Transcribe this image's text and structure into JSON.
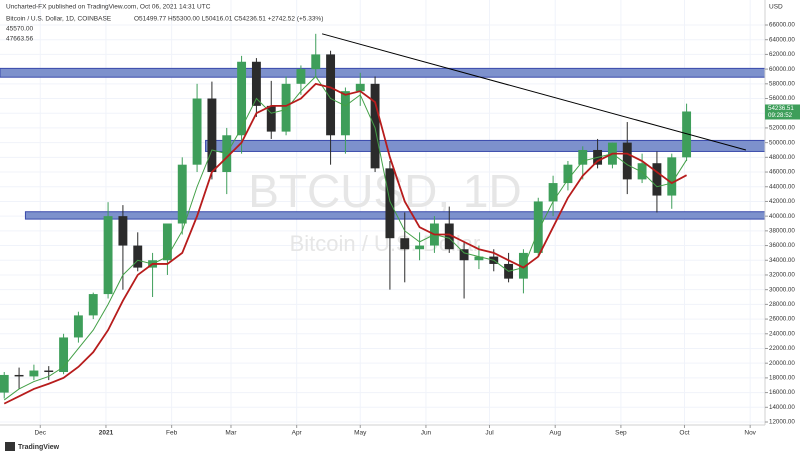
{
  "chart_data": {
    "type": "candlestick",
    "publisher": "Uncharted-FX published on TradingView.com, Oct 06, 2021 14:31 UTC",
    "title": "Bitcoin / U.S. Dollar, 1D, COINBASE",
    "ohlc_line": "O51499.77 H55300.00 L50416.01 C54236.51 +2742.52 (+5.33%)",
    "watermark": "BTCUSD, 1D",
    "watermark_sub": "Bitcoin / U.S. Dollar",
    "currency": "USD",
    "countdown": "09:28:52",
    "brand": "TradingView",
    "up_color": "#3e9e5a",
    "down_color": "#2b2b2b",
    "grid": true,
    "xlim": [
      -2,
      359
    ],
    "ylim": [
      12000,
      66000
    ],
    "xticks": [
      {
        "value": 17,
        "label": "Dec"
      },
      {
        "value": 48,
        "label": "2021"
      },
      {
        "value": 79,
        "label": "Feb"
      },
      {
        "value": 107,
        "label": "Mar"
      },
      {
        "value": 138,
        "label": "Apr"
      },
      {
        "value": 168,
        "label": "May"
      },
      {
        "value": 199,
        "label": "Jun"
      },
      {
        "value": 229,
        "label": "Jul"
      },
      {
        "value": 260,
        "label": "Aug"
      },
      {
        "value": 291,
        "label": "Sep"
      },
      {
        "value": 321,
        "label": "Oct"
      },
      {
        "value": 352,
        "label": "Nov"
      }
    ],
    "yticks": [
      {
        "value": 12000,
        "label": "12000.00"
      },
      {
        "value": 14000,
        "label": "14000.00"
      },
      {
        "value": 16000,
        "label": "16000.00"
      },
      {
        "value": 18000,
        "label": "18000.00"
      },
      {
        "value": 20000,
        "label": "20000.00"
      },
      {
        "value": 22000,
        "label": "22000.00"
      },
      {
        "value": 24000,
        "label": "24000.00"
      },
      {
        "value": 26000,
        "label": "26000.00"
      },
      {
        "value": 28000,
        "label": "28000.00"
      },
      {
        "value": 30000,
        "label": "30000.00"
      },
      {
        "value": 32000,
        "label": "32000.00"
      },
      {
        "value": 34000,
        "label": "34000.00"
      },
      {
        "value": 36000,
        "label": "36000.00"
      },
      {
        "value": 38000,
        "label": "38000.00"
      },
      {
        "value": 40000,
        "label": "40000.00"
      },
      {
        "value": 42000,
        "label": "42000.00"
      },
      {
        "value": 44000,
        "label": "44000.00"
      },
      {
        "value": 46000,
        "label": "46000.00"
      },
      {
        "value": 48000,
        "label": "48000.00"
      },
      {
        "value": 50000,
        "label": "50000.00"
      },
      {
        "value": 52000,
        "label": "52000.00"
      },
      {
        "value": 54000,
        "label": "54000.00"
      },
      {
        "value": 56000,
        "label": "56000.00"
      },
      {
        "value": 58000,
        "label": "58000.00"
      },
      {
        "value": 60000,
        "label": "60000.00"
      },
      {
        "value": 62000,
        "label": "62000.00"
      },
      {
        "value": 64000,
        "label": "64000.00"
      },
      {
        "value": 66000,
        "label": "66000.00"
      }
    ],
    "x": [
      0,
      7,
      14,
      21,
      28,
      35,
      42,
      49,
      56,
      63,
      70,
      77,
      84,
      91,
      98,
      105,
      112,
      119,
      126,
      133,
      140,
      147,
      154,
      161,
      168,
      175,
      182,
      189,
      196,
      203,
      210,
      217,
      224,
      231,
      238,
      245,
      252,
      259,
      266,
      273,
      280,
      287,
      294,
      301,
      308,
      315,
      322
    ],
    "open": [
      16000,
      18400,
      18200,
      19000,
      18800,
      23500,
      26500,
      29400,
      40000,
      36000,
      33000,
      34000,
      39000,
      47000,
      56000,
      46000,
      51000,
      61000,
      55000,
      51500,
      58000,
      60000,
      62000,
      51000,
      57000,
      58000,
      46500,
      37000,
      35500,
      36000,
      39000,
      35500,
      34000,
      34500,
      33500,
      31500,
      35000,
      42000,
      44500,
      47000,
      49000,
      47000,
      50000,
      45000,
      47200,
      42800,
      48000
    ],
    "high": [
      18800,
      19400,
      19800,
      19600,
      24000,
      27000,
      29600,
      41900,
      41500,
      37800,
      35000,
      38500,
      48000,
      58000,
      58300,
      52000,
      61800,
      61500,
      58400,
      59000,
      60500,
      64800,
      62500,
      57500,
      59500,
      59000,
      47500,
      40500,
      37800,
      40000,
      41300,
      36500,
      36000,
      35500,
      35000,
      35500,
      42500,
      45500,
      47500,
      49500,
      50500,
      50000,
      52800,
      48500,
      48800,
      48500,
      55300
    ],
    "low": [
      15200,
      16500,
      17700,
      17700,
      18500,
      22800,
      26000,
      28800,
      30000,
      32500,
      29000,
      32000,
      37500,
      46000,
      45000,
      43000,
      48500,
      53500,
      50500,
      51000,
      56500,
      59000,
      47000,
      48500,
      55000,
      46000,
      30000,
      31000,
      34000,
      35000,
      35000,
      28800,
      32800,
      32500,
      31000,
      29500,
      34500,
      40000,
      43500,
      45000,
      46500,
      46500,
      43000,
      44500,
      40500,
      41000,
      47500
    ],
    "close": [
      18400,
      18200,
      19000,
      18800,
      23500,
      26500,
      29400,
      40000,
      36000,
      33000,
      34000,
      39000,
      47000,
      56000,
      46000,
      51000,
      61000,
      55000,
      51500,
      58000,
      60000,
      62000,
      51000,
      57000,
      58000,
      46500,
      37000,
      35500,
      36000,
      39000,
      35500,
      34000,
      34500,
      33500,
      31500,
      35000,
      42000,
      44500,
      47000,
      49000,
      47000,
      50000,
      45000,
      47200,
      42800,
      48000,
      54236.51
    ],
    "series": [
      {
        "color": "#43a047",
        "values": [
          15000,
          16500,
          17500,
          18200,
          19500,
          22000,
          24500,
          28000,
          32000,
          34000,
          33500,
          34500,
          38000,
          44000,
          49000,
          48500,
          52000,
          56000,
          54000,
          54500,
          57000,
          59000,
          56000,
          55000,
          56500,
          52000,
          42000,
          38000,
          36500,
          37500,
          37000,
          35000,
          34500,
          34000,
          32500,
          33000,
          38000,
          42000,
          45000,
          47500,
          48000,
          48500,
          47000,
          46000,
          44000,
          44500,
          47663.56
        ],
        "value_label": "47663.56"
      },
      {
        "color": "#b71c1c",
        "values": [
          14500,
          15500,
          16500,
          17200,
          18000,
          19500,
          21500,
          24500,
          28500,
          32000,
          33500,
          33500,
          35000,
          40000,
          46000,
          48000,
          50000,
          54000,
          55000,
          55000,
          56000,
          58000,
          57500,
          56500,
          57000,
          55500,
          48000,
          42000,
          38500,
          37500,
          37500,
          36500,
          35500,
          35000,
          34000,
          33000,
          34500,
          38500,
          42500,
          45500,
          47500,
          48500,
          48500,
          47500,
          46000,
          44500,
          45570
        ],
        "value_label": "45570.00"
      }
    ],
    "zones": [
      {
        "from": -2,
        "low": 58900,
        "high": 60100
      },
      {
        "from": 95,
        "low": 48800,
        "high": 50300
      },
      {
        "from": 10,
        "low": 39600,
        "high": 40600
      }
    ],
    "zone_color": "#7d91cc",
    "trendline": {
      "x": [
        150,
        350
      ],
      "y": [
        64800,
        49000
      ]
    }
  }
}
